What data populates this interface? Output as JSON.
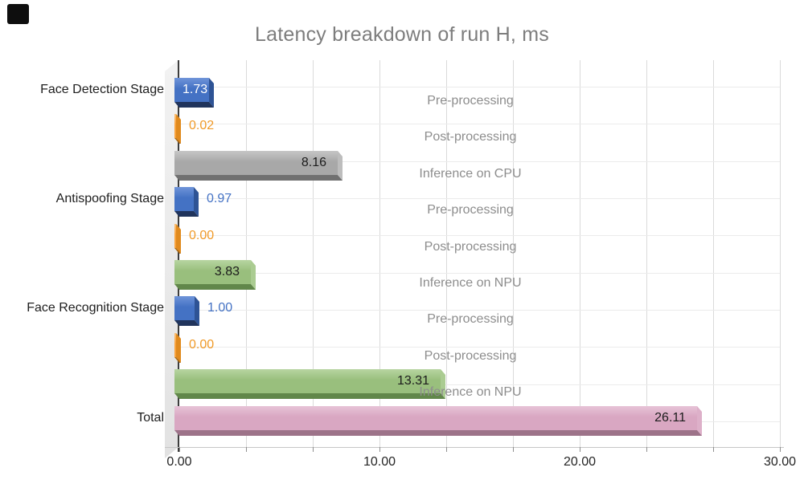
{
  "window": {
    "corner_marker": {
      "color": "#0e0e0e"
    }
  },
  "chart_data": {
    "type": "bar",
    "orientation": "horizontal",
    "title": "Latency breakdown of run H, ms",
    "xlabel": "",
    "ylabel": "",
    "xlim": [
      0,
      30
    ],
    "grid": true,
    "legend_position": "labels-centered-in-plot",
    "x_ticks": [
      {
        "value": 0,
        "label": "0.00"
      },
      {
        "value": 10,
        "label": "10.00"
      },
      {
        "value": 20,
        "label": "20.00"
      },
      {
        "value": 30,
        "label": "30.00"
      }
    ],
    "rows": [
      {
        "category": "Face Detection Stage",
        "label": "Pre-processing",
        "value": 1.73,
        "display": "1.73",
        "series": "pre",
        "value_label_pos": "inside-left"
      },
      {
        "category": "",
        "label": "Post-processing",
        "value": 0.02,
        "display": "0.02",
        "series": "post",
        "value_label_pos": "outside"
      },
      {
        "category": "",
        "label": "Inference on CPU",
        "value": 8.16,
        "display": "8.16",
        "series": "cpu",
        "value_label_pos": "inside-right"
      },
      {
        "category": "Antispoofing Stage",
        "label": "Pre-processing",
        "value": 0.97,
        "display": "0.97",
        "series": "pre",
        "value_label_pos": "outside"
      },
      {
        "category": "",
        "label": "Post-processing",
        "value": 0.0,
        "display": "0.00",
        "series": "post",
        "value_label_pos": "outside"
      },
      {
        "category": "",
        "label": "Inference on NPU",
        "value": 3.83,
        "display": "3.83",
        "series": "npu",
        "value_label_pos": "inside-right"
      },
      {
        "category": "Face Recognition Stage",
        "label": "Pre-processing",
        "value": 1.0,
        "display": "1.00",
        "series": "pre",
        "value_label_pos": "outside"
      },
      {
        "category": "",
        "label": "Post-processing",
        "value": 0.0,
        "display": "0.00",
        "series": "post",
        "value_label_pos": "outside"
      },
      {
        "category": "",
        "label": "Inference on NPU",
        "value": 13.31,
        "display": "13.31",
        "series": "npu",
        "value_label_pos": "inside-right"
      },
      {
        "category": "Total",
        "label": "",
        "value": 26.11,
        "display": "26.11",
        "series": "total",
        "value_label_pos": "inside-right"
      }
    ],
    "series_colors": {
      "pre": {
        "face": "#4472C4",
        "light": "#6F94D9",
        "cap": "#2E5395",
        "dark": "#20345C",
        "text": "#4472C4"
      },
      "post": {
        "face": "#F9A23B",
        "light": "#FBBE71",
        "cap": "#E08A1E",
        "dark": "#A96813",
        "text": "#F09A28"
      },
      "cpu": {
        "face": "#A8A8A8",
        "light": "#C6C6C6",
        "cap": "#BDBDBD",
        "dark": "#707070",
        "text": "#1c1c1c"
      },
      "npu": {
        "face": "#99BF7D",
        "light": "#B7D5A1",
        "cap": "#ABCC92",
        "dark": "#61874A",
        "text": "#1c1c1c"
      },
      "total": {
        "face": "#D9A7C2",
        "light": "#E7C3D7",
        "cap": "#DDB0C9",
        "dark": "#9D7389",
        "text": "#1c1c1c"
      }
    },
    "style_colors": {
      "title": "#7d7d7d",
      "grid_vertical": "#dadada",
      "grid_horizontal": "#ebebeb",
      "axis_line": "#3d3d3d",
      "category_text": "#202020",
      "mid_label_text": "#8d8d8d",
      "x_tick_text": "#262626"
    }
  }
}
